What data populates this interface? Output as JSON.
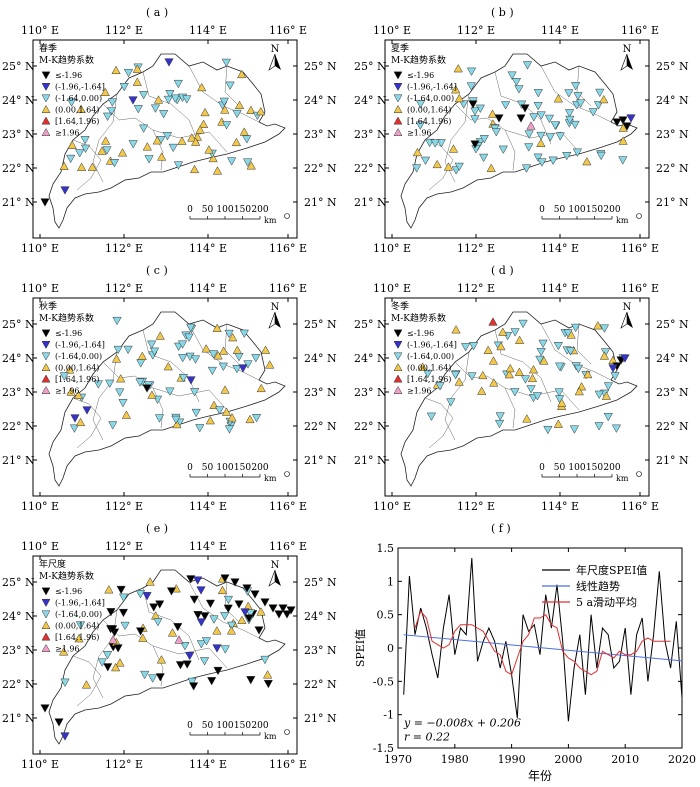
{
  "panels": [
    {
      "id": "a",
      "label": "( a )",
      "season": "春季"
    },
    {
      "id": "b",
      "label": "( b )",
      "season": "夏季"
    },
    {
      "id": "c",
      "label": "( c )",
      "season": "秋季"
    },
    {
      "id": "d",
      "label": "( d )",
      "season": "冬季"
    },
    {
      "id": "e",
      "label": "( e )",
      "season": "年尺度"
    }
  ],
  "map_common": {
    "legend_title": "M-K趋势系数",
    "legend_items": [
      {
        "label": "≤-1.96",
        "color": "#000000",
        "shape": "down"
      },
      {
        "label": "(-1.96,-1.64]",
        "color": "#3333cc",
        "shape": "down"
      },
      {
        "label": "(-1.64,0.00)",
        "color": "#88d8e8",
        "shape": "down"
      },
      {
        "label": "(0.00,1.64)",
        "color": "#f2c84b",
        "shape": "up"
      },
      {
        "label": "[1.64,1.96)",
        "color": "#e03030",
        "shape": "up"
      },
      {
        "label": "≥1.96",
        "color": "#f0a0c8",
        "shape": "up"
      }
    ],
    "lon_labels": [
      "110° E",
      "112° E",
      "114° E",
      "116° E"
    ],
    "lat_labels": [
      "25° N",
      "24° N",
      "23° N",
      "22° N",
      "21° N"
    ],
    "north": "N",
    "scale_ticks": [
      "0",
      "50",
      "100",
      "150",
      "200"
    ],
    "scale_unit": "km"
  },
  "chart_panel_label": "( f )",
  "chart_data": {
    "type": "line",
    "xlabel": "年份",
    "ylabel": "SPEI值",
    "xlim": [
      1970,
      2020
    ],
    "ylim": [
      -1.5,
      1.5
    ],
    "xticks": [
      1970,
      1980,
      1990,
      2000,
      2010,
      2020
    ],
    "yticks": [
      -1.5,
      -1,
      -0.5,
      0,
      0.5,
      1,
      1.5
    ],
    "series": [
      {
        "name": "年尺度SPEI值",
        "color": "#000000",
        "x": [
          1971,
          1972,
          1973,
          1974,
          1975,
          1976,
          1977,
          1978,
          1979,
          1980,
          1981,
          1982,
          1983,
          1984,
          1985,
          1986,
          1987,
          1988,
          1989,
          1990,
          1991,
          1992,
          1993,
          1994,
          1995,
          1996,
          1997,
          1998,
          1999,
          2000,
          2001,
          2002,
          2003,
          2004,
          2005,
          2006,
          2007,
          2008,
          2009,
          2010,
          2011,
          2012,
          2013,
          2014,
          2015,
          2016,
          2017,
          2018,
          2019,
          2020
        ],
        "y": [
          -0.7,
          1.08,
          0.2,
          0.6,
          0.3,
          -0.1,
          -0.45,
          0.3,
          0.8,
          -0.1,
          0.3,
          0.2,
          1.35,
          -0.2,
          0.1,
          0.3,
          0.1,
          -0.3,
          0.1,
          -0.4,
          -1.05,
          0.5,
          0.25,
          0.35,
          -0.1,
          0.8,
          0.3,
          0.95,
          0.1,
          -1.1,
          -0.3,
          0.2,
          -0.7,
          0.5,
          -0.3,
          0.3,
          0.2,
          -0.3,
          -0.2,
          0.3,
          -0.7,
          0.2,
          0.45,
          -0.5,
          0.2,
          1.15,
          0.1,
          -0.3,
          0.4,
          -0.75
        ]
      },
      {
        "name": "线性趋势",
        "color": "#4a6fe0",
        "x": [
          1971,
          2020
        ],
        "y": [
          0.198,
          -0.194
        ]
      },
      {
        "name": "5 a滑动平均",
        "color": "#e03030",
        "x": [
          1973,
          1974,
          1975,
          1976,
          1977,
          1978,
          1979,
          1980,
          1981,
          1982,
          1983,
          1984,
          1985,
          1986,
          1987,
          1988,
          1989,
          1990,
          1991,
          1992,
          1993,
          1994,
          1995,
          1996,
          1997,
          1998,
          1999,
          2000,
          2001,
          2002,
          2003,
          2004,
          2005,
          2006,
          2007,
          2008,
          2009,
          2010,
          2011,
          2012,
          2013,
          2014,
          2015,
          2016,
          2017,
          2018
        ],
        "y": [
          0.3,
          0.55,
          0.45,
          0.1,
          0.05,
          0.0,
          0.05,
          0.25,
          0.35,
          0.35,
          0.35,
          0.3,
          0.25,
          0.1,
          -0.05,
          -0.1,
          -0.35,
          -0.4,
          -0.15,
          0.1,
          0.2,
          0.45,
          0.45,
          0.5,
          0.35,
          0.3,
          -0.05,
          -0.15,
          -0.2,
          -0.3,
          -0.35,
          -0.4,
          -0.35,
          -0.05,
          -0.1,
          -0.15,
          -0.05,
          -0.1,
          -0.1,
          -0.05,
          0.1,
          0.15,
          0.1,
          0.1,
          0.1,
          0.1
        ]
      }
    ],
    "annotations": [
      "y = −0.008x + 0.206",
      "r = 0.22"
    ],
    "legend_position": "top-right",
    "grid": false
  }
}
